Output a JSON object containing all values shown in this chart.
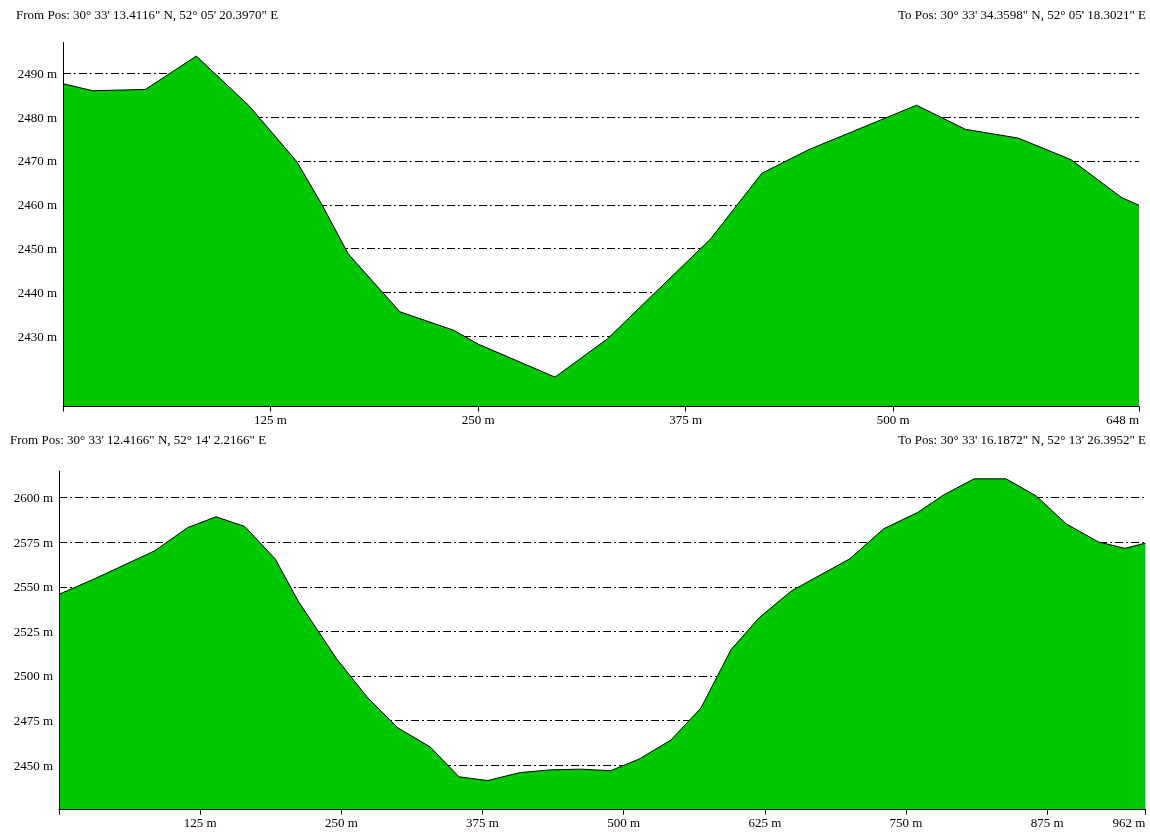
{
  "chart_data": [
    {
      "type": "area",
      "annotations": [
        "From Pos: 30° 33' 13.4116\" N, 52° 05' 20.3970\" E",
        "To Pos: 30° 33' 34.3598\" N, 52° 05' 18.3021\" E"
      ],
      "x": [
        0,
        18,
        49.6,
        80.3,
        112,
        140.7,
        155.7,
        171.8,
        202.9,
        235.2,
        250.2,
        296.3,
        327.8,
        390.2,
        420.9,
        449.3,
        514,
        543.5,
        575.3,
        607,
        637.7,
        648
      ],
      "series": [
        {
          "color": "#00c800",
          "values": [
            2487.6,
            2486.0,
            2486.3,
            2493.9,
            2482.6,
            2469.9,
            2460.2,
            2448.8,
            2435.6,
            2431.4,
            2428.2,
            2420.7,
            2429.4,
            2452.3,
            2467.2,
            2472.6,
            2482.7,
            2477.2,
            2475.2,
            2470.3,
            2461.6,
            2459.9
          ]
        }
      ],
      "xlim": [
        0,
        648
      ],
      "ylim": [
        2414,
        2497
      ],
      "xticks": [
        {
          "value": 0,
          "label": null
        },
        {
          "value": 125,
          "label": "125 m"
        },
        {
          "value": 250,
          "label": "250 m"
        },
        {
          "value": 375,
          "label": "375 m"
        },
        {
          "value": 500,
          "label": "500 m"
        },
        {
          "value": 648,
          "label": "648 m"
        }
      ],
      "yticks": [
        {
          "value": 2430,
          "label": "2430 m"
        },
        {
          "value": 2440,
          "label": "2440 m"
        },
        {
          "value": 2450,
          "label": "2450 m"
        },
        {
          "value": 2460,
          "label": "2460 m"
        },
        {
          "value": 2470,
          "label": "2470 m"
        },
        {
          "value": 2480,
          "label": "2480 m"
        },
        {
          "value": 2490,
          "label": "2490 m"
        }
      ],
      "grid": "y"
    },
    {
      "type": "area",
      "annotations": [
        "From Pos: 30° 33' 12.4166\" N, 52° 14' 2.2166\" E",
        "To Pos: 30° 33' 16.1872\" N, 52° 13' 26.3952\" E"
      ],
      "x": [
        0,
        32.5,
        85,
        113.7,
        139.1,
        164.5,
        191.6,
        211.9,
        245.8,
        272.9,
        300,
        328.8,
        354.2,
        379.6,
        408.4,
        435.5,
        462.6,
        488.4,
        513.5,
        541.8,
        568.4,
        595.1,
        620.2,
        648.5,
        700.2,
        730.3,
        760.3,
        783.6,
        810.3,
        838.7,
        865.3,
        892,
        920.4,
        943.7,
        962
      ],
      "series": [
        {
          "color": "#00c800",
          "values": [
            2545.8,
            2554.8,
            2570.3,
            2583.2,
            2589.3,
            2583.9,
            2565.5,
            2541.9,
            2509.7,
            2488.1,
            2470.9,
            2460.1,
            2443.4,
            2441.3,
            2445.8,
            2447.3,
            2447.7,
            2446.8,
            2453.3,
            2464,
            2482,
            2514.8,
            2532.8,
            2547.7,
            2565.7,
            2582.6,
            2591.7,
            2601.7,
            2610.6,
            2610.6,
            2601,
            2585.3,
            2575.2,
            2571.6,
            2574.5
          ]
        }
      ],
      "xlim": [
        0,
        962
      ],
      "ylim": [
        2425,
        2615
      ],
      "xticks": [
        {
          "value": 0,
          "label": null
        },
        {
          "value": 125,
          "label": "125 m"
        },
        {
          "value": 250,
          "label": "250 m"
        },
        {
          "value": 375,
          "label": "375 m"
        },
        {
          "value": 500,
          "label": "500 m"
        },
        {
          "value": 625,
          "label": "625 m"
        },
        {
          "value": 750,
          "label": "750 m"
        },
        {
          "value": 875,
          "label": "875 m"
        },
        {
          "value": 962,
          "label": "962 m"
        }
      ],
      "yticks": [
        {
          "value": 2450,
          "label": "2450 m"
        },
        {
          "value": 2475,
          "label": "2475 m"
        },
        {
          "value": 2500,
          "label": "2500 m"
        },
        {
          "value": 2525,
          "label": "2525 m"
        },
        {
          "value": 2550,
          "label": "2550 m"
        },
        {
          "value": 2575,
          "label": "2575 m"
        },
        {
          "value": 2600,
          "label": "2600 m"
        }
      ],
      "grid": "y"
    }
  ]
}
